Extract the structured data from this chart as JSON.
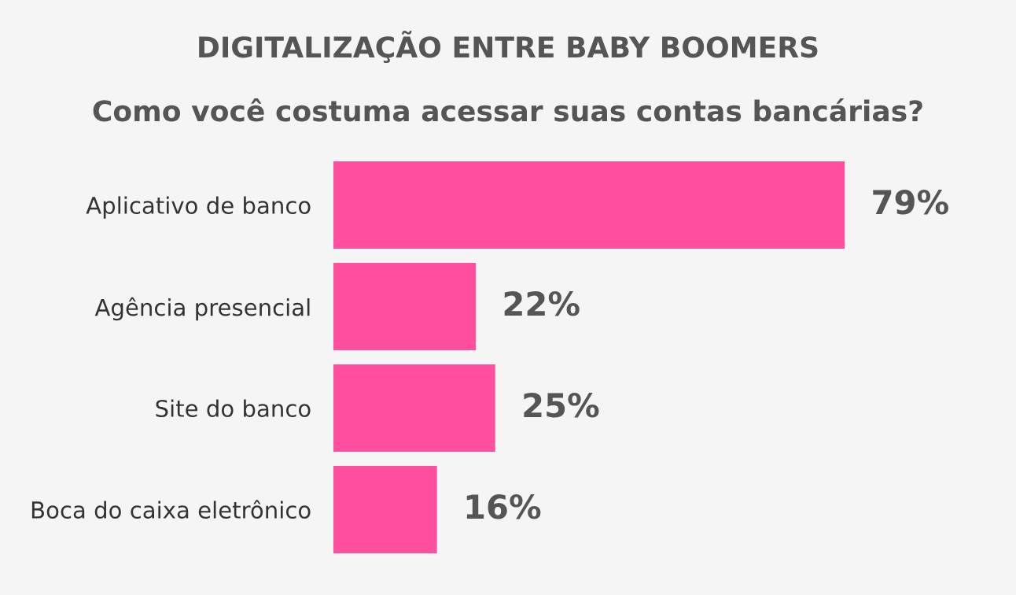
{
  "chart_data": {
    "type": "bar",
    "orientation": "horizontal",
    "title": "DIGITALIZAÇÃO ENTRE BABY BOOMERS",
    "subtitle": "Como você costuma acessar suas contas bancárias?",
    "categories": [
      "Aplicativo de banco",
      "Agência presencial",
      "Site do banco",
      "Boca do caixa eletrônico"
    ],
    "values": [
      79,
      22,
      25,
      16
    ],
    "color": "#ff4f9e",
    "value_labels": [
      "79%",
      "22%",
      "25%",
      "16%"
    ],
    "tick_labels": "y",
    "grid": false,
    "legend": false
  }
}
